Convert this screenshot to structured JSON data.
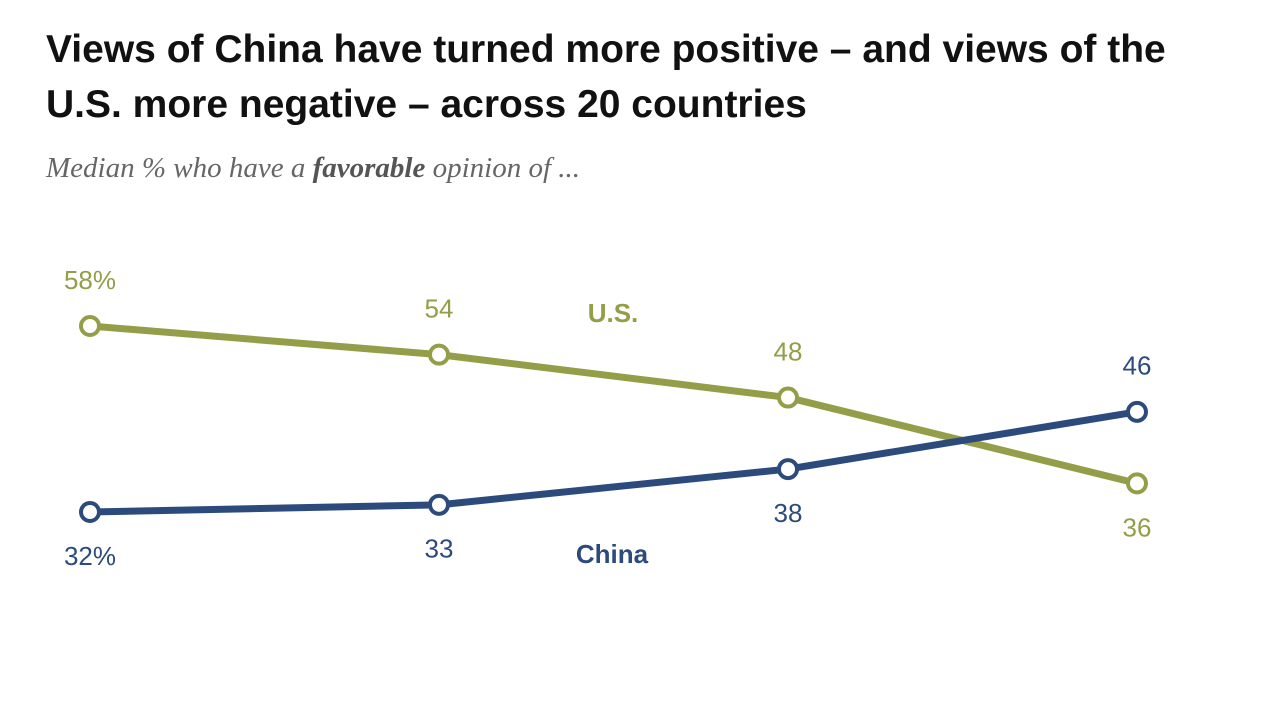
{
  "chart_data": {
    "type": "line",
    "title": "Views of China have turned more positive – and views of the U.S. more negative – across 20 countries",
    "subtitle": [
      "Median % who have a ",
      "favorable",
      " opinion of ..."
    ],
    "categories": [
      null,
      null,
      null,
      null
    ],
    "ylim": [
      30,
      60
    ],
    "series": [
      {
        "name": "U.S.",
        "color": "#949d48",
        "values": [
          58,
          54,
          48,
          36
        ],
        "value_labels": [
          "58%",
          "54",
          "48",
          "36"
        ]
      },
      {
        "name": "China",
        "color": "#2c4b7c",
        "values": [
          32,
          33,
          38,
          46
        ],
        "value_labels": [
          "32%",
          "33",
          "38",
          "46"
        ]
      }
    ]
  }
}
